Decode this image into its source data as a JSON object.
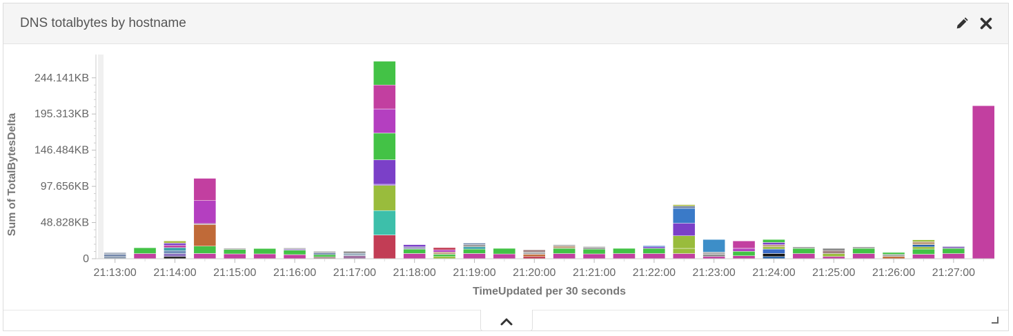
{
  "panel": {
    "title": "DNS totalbytes by hostname",
    "edit_icon": "pencil-icon",
    "close_icon": "close-icon",
    "collapse_icon": "chevron-up-icon",
    "resize_icon": "resize-corner-icon"
  },
  "chart_data": {
    "type": "bar",
    "stacked": true,
    "xlabel": "TimeUpdated per 30 seconds",
    "ylabel": "Sum of TotalBytesDelta",
    "ylim": [
      0,
      270000
    ],
    "y_ticks": [
      {
        "value": 0,
        "label": "0"
      },
      {
        "value": 48828,
        "label": "48.828KB"
      },
      {
        "value": 97656,
        "label": "97.656KB"
      },
      {
        "value": 146484,
        "label": "146.484KB"
      },
      {
        "value": 195313,
        "label": "195.313KB"
      },
      {
        "value": 244141,
        "label": "244.141KB"
      }
    ],
    "x_tick_labels": [
      "21:13:00",
      "21:14:00",
      "21:15:00",
      "21:16:00",
      "21:17:00",
      "21:18:00",
      "21:19:00",
      "21:20:00",
      "21:21:00",
      "21:22:00",
      "21:23:00",
      "21:24:00",
      "21:25:00",
      "21:26:00",
      "21:27:00"
    ],
    "categories": [
      "21:13:00",
      "21:13:30",
      "21:14:00",
      "21:14:30",
      "21:15:00",
      "21:15:30",
      "21:16:00",
      "21:16:30",
      "21:17:00",
      "21:17:30",
      "21:18:00",
      "21:18:30",
      "21:19:00",
      "21:19:30",
      "21:20:00",
      "21:20:30",
      "21:21:00",
      "21:21:30",
      "21:22:00",
      "21:22:30",
      "21:23:00",
      "21:23:30",
      "21:24:00",
      "21:24:30",
      "21:25:00",
      "21:25:30",
      "21:26:00",
      "21:26:30",
      "21:27:00",
      "21:27:30"
    ],
    "stacks": [
      [
        {
          "value": 3000,
          "color": "#8b9bb0"
        },
        {
          "value": 3000,
          "color": "#6f84a8"
        },
        {
          "value": 2500,
          "color": "#aab3c0"
        }
      ],
      [
        {
          "value": 7000,
          "color": "#c23fa0"
        },
        {
          "value": 7800,
          "color": "#43c246"
        }
      ],
      [
        {
          "value": 3000,
          "color": "#222222"
        },
        {
          "value": 4000,
          "color": "#8a6fbd"
        },
        {
          "value": 4000,
          "color": "#6f8fb8"
        },
        {
          "value": 4000,
          "color": "#3aa0a8"
        },
        {
          "value": 3000,
          "color": "#c23fa0"
        },
        {
          "value": 3000,
          "color": "#7b40c8"
        },
        {
          "value": 3000,
          "color": "#a8b840"
        }
      ],
      [
        {
          "value": 7000,
          "color": "#c23fa0"
        },
        {
          "value": 10000,
          "color": "#43c246"
        },
        {
          "value": 29000,
          "color": "#c06a38"
        },
        {
          "value": 1500,
          "color": "#a08080"
        },
        {
          "value": 31000,
          "color": "#b43fc0"
        },
        {
          "value": 30000,
          "color": "#c23fa0"
        }
      ],
      [
        {
          "value": 6500,
          "color": "#c23fa0"
        },
        {
          "value": 6000,
          "color": "#43c246"
        },
        {
          "value": 1500,
          "color": "#999999"
        }
      ],
      [
        {
          "value": 6500,
          "color": "#c23fa0"
        },
        {
          "value": 7300,
          "color": "#43c246"
        }
      ],
      [
        {
          "value": 5500,
          "color": "#c23fa0"
        },
        {
          "value": 6000,
          "color": "#43c246"
        },
        {
          "value": 1500,
          "color": "#8a6fbd"
        },
        {
          "value": 1500,
          "color": "#aaaaaa"
        }
      ],
      [
        {
          "value": 2500,
          "color": "#a08080"
        },
        {
          "value": 3000,
          "color": "#43c246"
        },
        {
          "value": 2500,
          "color": "#6f84a8"
        },
        {
          "value": 2000,
          "color": "#aaaaaa"
        }
      ],
      [
        {
          "value": 4000,
          "color": "#a06fa0"
        },
        {
          "value": 3500,
          "color": "#9cb0c0"
        },
        {
          "value": 2500,
          "color": "#888888"
        }
      ],
      [
        {
          "value": 32000,
          "color": "#c23d55"
        },
        {
          "value": 33000,
          "color": "#3dbfaa"
        },
        {
          "value": 34000,
          "color": "#99bc3c"
        },
        {
          "value": 1500,
          "color": "#7b40c8"
        },
        {
          "value": 33000,
          "color": "#7b40c8"
        },
        {
          "value": 36000,
          "color": "#43c246"
        },
        {
          "value": 32500,
          "color": "#b43fc0"
        },
        {
          "value": 32500,
          "color": "#c23fa0"
        },
        {
          "value": 32000,
          "color": "#43c246"
        }
      ],
      [
        {
          "value": 7000,
          "color": "#c23fa0"
        },
        {
          "value": 6000,
          "color": "#43c246"
        },
        {
          "value": 3000,
          "color": "#a0a0c0"
        },
        {
          "value": 3000,
          "color": "#7b40c8"
        }
      ],
      [
        {
          "value": 3000,
          "color": "#99bc3c"
        },
        {
          "value": 3000,
          "color": "#43c246"
        },
        {
          "value": 3000,
          "color": "#c0a080"
        },
        {
          "value": 3000,
          "color": "#b43fc0"
        },
        {
          "value": 3000,
          "color": "#c23d55"
        }
      ],
      [
        {
          "value": 7000,
          "color": "#c23fa0"
        },
        {
          "value": 6000,
          "color": "#43c246"
        },
        {
          "value": 3000,
          "color": "#3aa0a8"
        },
        {
          "value": 3000,
          "color": "#999999"
        },
        {
          "value": 2000,
          "color": "#6f84a8"
        }
      ],
      [
        {
          "value": 6500,
          "color": "#c23fa0"
        },
        {
          "value": 7500,
          "color": "#43c246"
        }
      ],
      [
        {
          "value": 3000,
          "color": "#c23d55"
        },
        {
          "value": 3000,
          "color": "#c06a38"
        },
        {
          "value": 3000,
          "color": "#aaaaaa"
        },
        {
          "value": 3000,
          "color": "#a08080"
        }
      ],
      [
        {
          "value": 7000,
          "color": "#c23fa0"
        },
        {
          "value": 7000,
          "color": "#43c246"
        },
        {
          "value": 3000,
          "color": "#c0a080"
        },
        {
          "value": 2000,
          "color": "#aaaaaa"
        }
      ],
      [
        {
          "value": 6500,
          "color": "#c23fa0"
        },
        {
          "value": 6500,
          "color": "#43c246"
        },
        {
          "value": 2000,
          "color": "#888888"
        },
        {
          "value": 1500,
          "color": "#aaaaaa"
        }
      ],
      [
        {
          "value": 7000,
          "color": "#c23fa0"
        },
        {
          "value": 7000,
          "color": "#43c246"
        }
      ],
      [
        {
          "value": 7000,
          "color": "#c23fa0"
        },
        {
          "value": 7000,
          "color": "#43c246"
        },
        {
          "value": 2000,
          "color": "#7b40c8"
        },
        {
          "value": 1500,
          "color": "#3a6cc8"
        }
      ],
      [
        {
          "value": 7000,
          "color": "#c23fa0"
        },
        {
          "value": 7000,
          "color": "#99bc3c"
        },
        {
          "value": 17000,
          "color": "#99bc3c"
        },
        {
          "value": 17000,
          "color": "#7b40c8"
        },
        {
          "value": 20000,
          "color": "#3a7ac8"
        },
        {
          "value": 3000,
          "color": "#6f84a8"
        },
        {
          "value": 2000,
          "color": "#a8b840"
        }
      ],
      [
        {
          "value": 3000,
          "color": "#c23fa0"
        },
        {
          "value": 3000,
          "color": "#888888"
        },
        {
          "value": 3000,
          "color": "#aaaaaa"
        },
        {
          "value": 17000,
          "color": "#3d8ec8"
        }
      ],
      [
        {
          "value": 4000,
          "color": "#c23fa0"
        },
        {
          "value": 6000,
          "color": "#43c246"
        },
        {
          "value": 4000,
          "color": "#b43fc0"
        },
        {
          "value": 10000,
          "color": "#c23fa0"
        }
      ],
      [
        {
          "value": 3000,
          "color": "#2460a8"
        },
        {
          "value": 4000,
          "color": "#111111"
        },
        {
          "value": 6000,
          "color": "#3a6cc8"
        },
        {
          "value": 3000,
          "color": "#99bc3c"
        },
        {
          "value": 3000,
          "color": "#c0a080"
        },
        {
          "value": 3000,
          "color": "#7b40c8"
        },
        {
          "value": 4000,
          "color": "#43c246"
        }
      ],
      [
        {
          "value": 7000,
          "color": "#c23fa0"
        },
        {
          "value": 7000,
          "color": "#43c246"
        },
        {
          "value": 2000,
          "color": "#999999"
        }
      ],
      [
        {
          "value": 3000,
          "color": "#c23fa0"
        },
        {
          "value": 4000,
          "color": "#99bc3c"
        },
        {
          "value": 4000,
          "color": "#a08080"
        },
        {
          "value": 3000,
          "color": "#888888"
        }
      ],
      [
        {
          "value": 7000,
          "color": "#c23fa0"
        },
        {
          "value": 7000,
          "color": "#43c246"
        },
        {
          "value": 2000,
          "color": "#999999"
        }
      ],
      [
        {
          "value": 3000,
          "color": "#c06a38"
        },
        {
          "value": 3000,
          "color": "#aaaaaa"
        },
        {
          "value": 2500,
          "color": "#43c246"
        }
      ],
      [
        {
          "value": 6000,
          "color": "#c23fa0"
        },
        {
          "value": 7000,
          "color": "#43c246"
        },
        {
          "value": 3000,
          "color": "#99bc3c"
        },
        {
          "value": 3000,
          "color": "#2460a8"
        },
        {
          "value": 4000,
          "color": "#c0a080"
        },
        {
          "value": 2500,
          "color": "#99bc3c"
        }
      ],
      [
        {
          "value": 7000,
          "color": "#c23fa0"
        },
        {
          "value": 7000,
          "color": "#43c246"
        },
        {
          "value": 2500,
          "color": "#8a6fbd"
        }
      ],
      [
        {
          "value": 206500,
          "color": "#c23fa0"
        }
      ]
    ]
  }
}
